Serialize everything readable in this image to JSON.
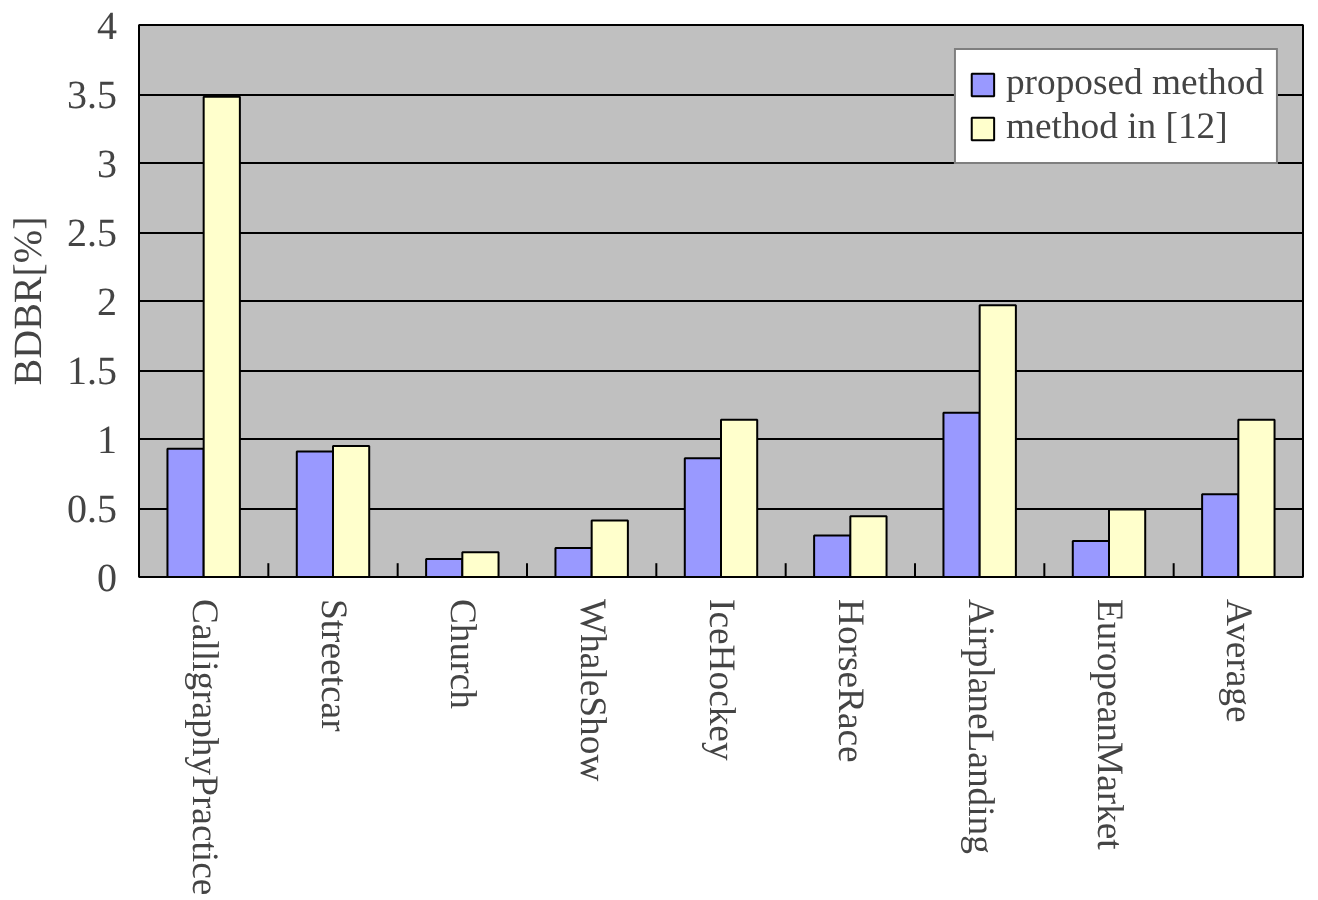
{
  "chart_data": {
    "type": "bar",
    "ylabel": "BDBR[%]",
    "categories": [
      "CalligraphyPractice",
      "Streetcar",
      "Church",
      "WhaleShow",
      "IceHockey",
      "HorseRace",
      "AirplaneLanding",
      "EuropeanMarket",
      "Average"
    ],
    "series": [
      {
        "name": "proposed method",
        "color": "#9999ff",
        "values": [
          0.93,
          0.91,
          0.13,
          0.21,
          0.86,
          0.3,
          1.19,
          0.26,
          0.6
        ]
      },
      {
        "name": "method in [12]",
        "color": "#ffffcc",
        "values": [
          3.48,
          0.95,
          0.18,
          0.41,
          1.14,
          0.44,
          1.97,
          0.49,
          1.14
        ]
      }
    ],
    "ylim": [
      0,
      4
    ],
    "yticks": [
      0,
      0.5,
      1,
      1.5,
      2,
      2.5,
      3,
      3.5,
      4
    ],
    "grid": "y",
    "legend": "top right"
  }
}
